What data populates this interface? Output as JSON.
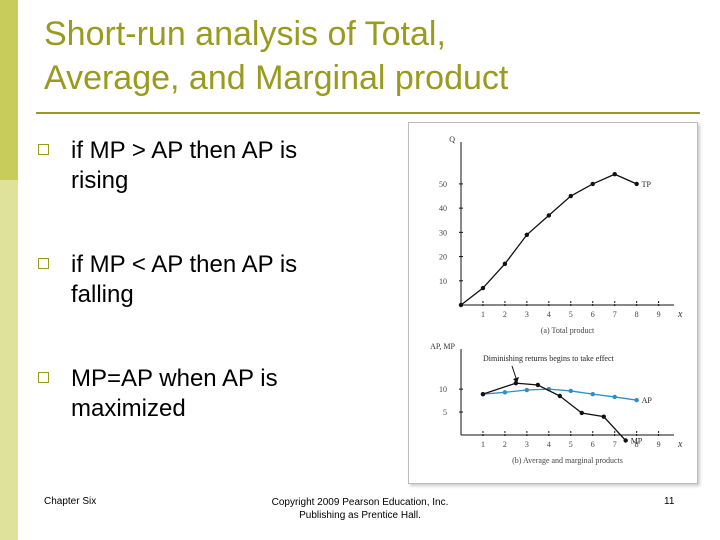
{
  "slide": {
    "title_lines": [
      "Short-run analysis of Total,",
      "Average, and Marginal product"
    ],
    "bullets": [
      "if MP > AP then AP is rising",
      "if MP < AP then AP is falling",
      "MP=AP when AP is maximized"
    ],
    "footer_left": "Chapter Six",
    "footer_center": [
      "Copyright 2009 Pearson Education, Inc.",
      "Publishing as Prentice Hall."
    ],
    "page_number": 11
  },
  "chart_data": [
    {
      "type": "line",
      "title": "(a) Total product",
      "ylabel": "Q",
      "xlabel": "x",
      "xlim": [
        0,
        9.7
      ],
      "ylim": [
        0,
        64
      ],
      "xticks": [
        1,
        2,
        3,
        4,
        5,
        6,
        7,
        8,
        9
      ],
      "yticks": [
        10,
        20,
        30,
        40,
        50
      ],
      "series": [
        {
          "name": "TP",
          "color": "#111111",
          "x": [
            0,
            1,
            2,
            3,
            4,
            5,
            6,
            7,
            8
          ],
          "values": [
            0,
            7,
            17,
            29,
            37,
            45,
            50,
            54,
            50
          ]
        }
      ]
    },
    {
      "type": "line",
      "title": "(b) Average and marginal products",
      "ylabel": "AP, MP",
      "xlabel": "x",
      "annotation": "Diminishing returns begins to take effect",
      "xlim": [
        0,
        9.7
      ],
      "ylim": [
        0,
        17
      ],
      "xticks": [
        1,
        2,
        3,
        4,
        5,
        6,
        7,
        8,
        9
      ],
      "yticks": [
        5,
        10
      ],
      "series": [
        {
          "name": "AP",
          "color": "#2a8fc4",
          "x": [
            1,
            2,
            3,
            4,
            5,
            6,
            7,
            8
          ],
          "values": [
            8.9,
            9.3,
            9.8,
            10,
            9.6,
            8.9,
            8.3,
            7.6
          ]
        },
        {
          "name": "MP",
          "color": "#111111",
          "x": [
            1,
            2.5,
            3.5,
            4.5,
            5.5,
            6.5,
            7.5
          ],
          "values": [
            8.9,
            11.3,
            10.9,
            8.5,
            4.8,
            4,
            -1.2
          ]
        }
      ]
    }
  ]
}
